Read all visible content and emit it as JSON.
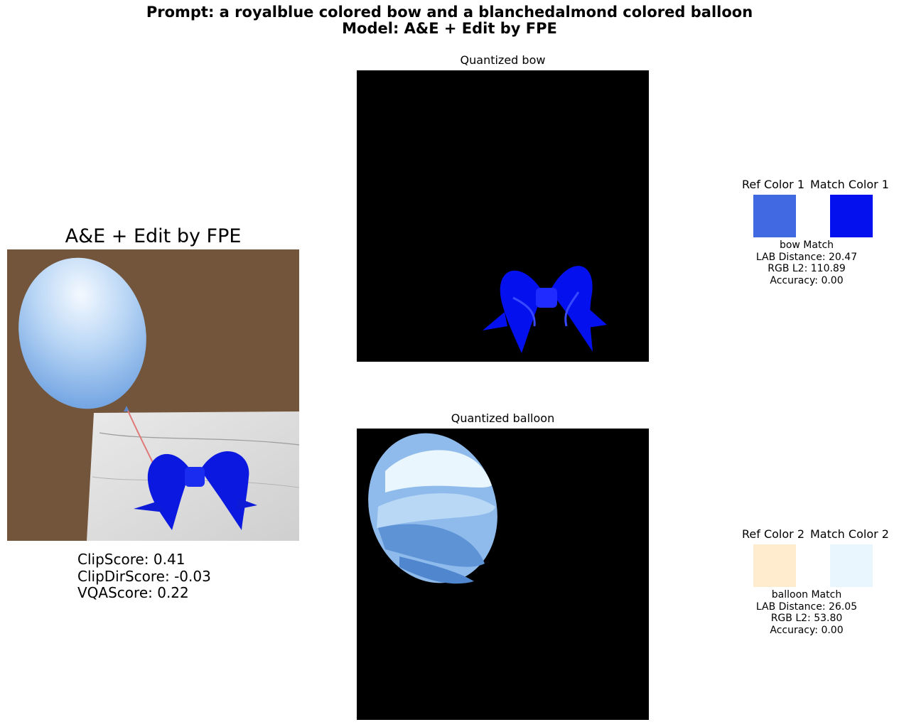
{
  "header": {
    "prompt_line": "Prompt: a royalblue colored bow and a blanchedalmond colored balloon",
    "model_line": "Model: A&E + Edit by FPE"
  },
  "main_panel": {
    "title": "A&E + Edit by FPE"
  },
  "scores": {
    "clip": "ClipScore: 0.41",
    "clip_dir": "ClipDirScore: -0.03",
    "vqa": "VQAScore: 0.22"
  },
  "quantized": [
    {
      "title": "Quantized bow"
    },
    {
      "title": "Quantized balloon"
    }
  ],
  "colors": [
    {
      "ref_label": "Ref Color 1",
      "match_label": "Match Color 1",
      "ref_color": "#4169e1",
      "match_color": "#0410ee",
      "caption": [
        "bow Match",
        "LAB Distance: 20.47",
        "RGB L2: 110.89",
        "Accuracy: 0.00"
      ]
    },
    {
      "ref_label": "Ref Color 2",
      "match_label": "Match Color 2",
      "ref_color": "#ffebcd",
      "match_color": "#eaf6fd",
      "caption": [
        "balloon Match",
        "LAB Distance: 26.05",
        "RGB L2: 53.80",
        "Accuracy: 0.00"
      ]
    }
  ]
}
